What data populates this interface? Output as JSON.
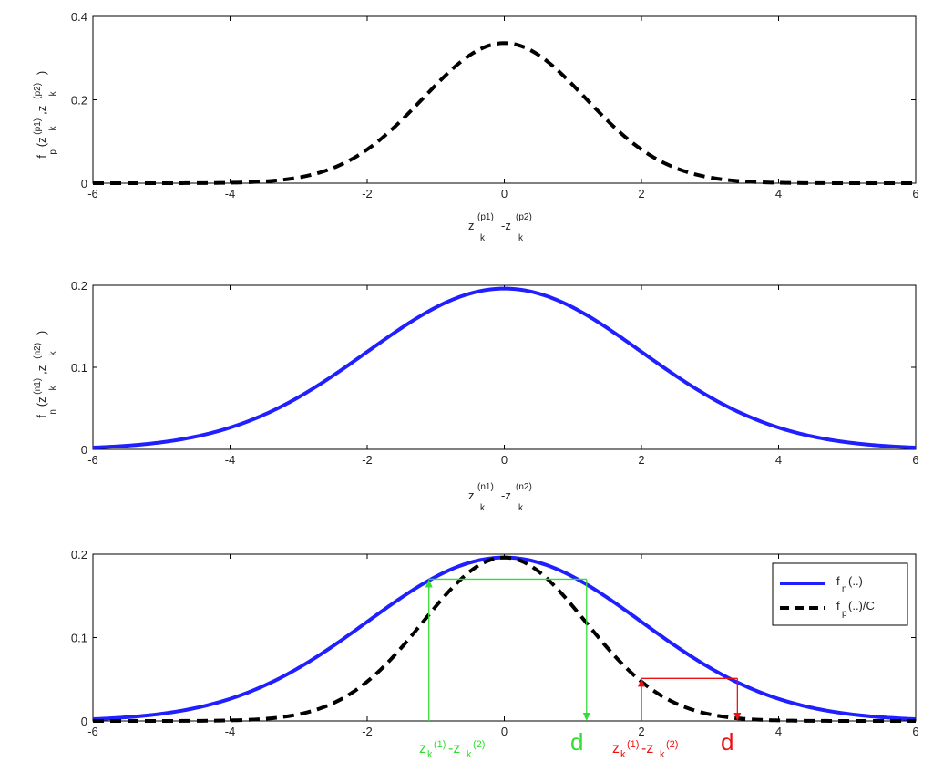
{
  "chart_data": [
    {
      "type": "line",
      "xlim": [
        -6,
        6
      ],
      "ylim": [
        0,
        0.4
      ],
      "x_ticks": [
        "-6",
        "-4",
        "-2",
        "0",
        "2",
        "4",
        "6"
      ],
      "y_ticks": [
        "0",
        "0.2",
        "0.4"
      ],
      "xlabel": {
        "main1": "z",
        "sub1": "k",
        "sup1": "(p1)",
        "mid": "-z",
        "sub2": "k",
        "sup2": "(p2)"
      },
      "ylabel": {
        "f": "f",
        "fsub": "p",
        "arg": "(z",
        "sup1": "(p1)",
        "sub1": "k",
        "mid": ",z",
        "sup2": "(p2)",
        "sub2": "k",
        "close": ")"
      },
      "series": [
        {
          "style": "dashed",
          "color": "#000000",
          "gaussian": {
            "amp": 0.336,
            "sigma": 1.185
          }
        }
      ]
    },
    {
      "type": "line",
      "xlim": [
        -6,
        6
      ],
      "ylim": [
        0,
        0.2
      ],
      "x_ticks": [
        "-6",
        "-4",
        "-2",
        "0",
        "2",
        "4",
        "6"
      ],
      "y_ticks": [
        "0",
        "0.1",
        "0.2"
      ],
      "xlabel": {
        "main1": "z",
        "sub1": "k",
        "sup1": "(n1)",
        "mid": "-z",
        "sub2": "k",
        "sup2": "(n2)"
      },
      "ylabel": {
        "f": "f",
        "fsub": "n",
        "arg": "(z",
        "sup1": "(n1)",
        "sub1": "k",
        "mid": ",z",
        "sup2": "(n2)",
        "sub2": "k",
        "close": ")"
      },
      "series": [
        {
          "style": "solid",
          "color": "#1f1fff",
          "gaussian": {
            "amp": 0.196,
            "sigma": 2.0
          }
        }
      ]
    },
    {
      "type": "line",
      "xlim": [
        -6,
        6
      ],
      "ylim": [
        0,
        0.2
      ],
      "x_ticks": [
        "-6",
        "-4",
        "-2",
        "0",
        "2",
        "4",
        "6"
      ],
      "y_ticks": [
        "0",
        "0.1",
        "0.2"
      ],
      "series": [
        {
          "style": "solid",
          "color": "#1f1fff",
          "gaussian": {
            "amp": 0.196,
            "sigma": 2.0
          }
        },
        {
          "style": "dashed",
          "color": "#000000",
          "gaussian": {
            "amp": 0.196,
            "sigma": 1.185
          }
        }
      ],
      "legend": {
        "position": "top-right",
        "entries": [
          {
            "style": "solid",
            "color": "#1f1fff",
            "main": "f",
            "sub": "n",
            "rest": "(..)"
          },
          {
            "style": "dashed",
            "color": "#000000",
            "main": "f",
            "sub": "p",
            "rest": "(..)/C"
          }
        ]
      },
      "annotations": {
        "green": {
          "color": "#33dd33",
          "x_left": -1.1,
          "x_right": 1.2,
          "y": 0.17,
          "label_main1": "z",
          "label_sub1": "k",
          "label_sup1": "(1)",
          "label_mid": "-z",
          "label_sub2": "k",
          "label_sup2": "(2)",
          "d": "d"
        },
        "red": {
          "color": "#ee1111",
          "x_left": 2.0,
          "x_right": 3.4,
          "y": 0.051,
          "label_main1": "z",
          "label_sub1": "k",
          "label_sup1": "(1)",
          "label_mid": "-z",
          "label_sub2": "k",
          "label_sup2": "(2)",
          "d": "d"
        }
      }
    }
  ]
}
